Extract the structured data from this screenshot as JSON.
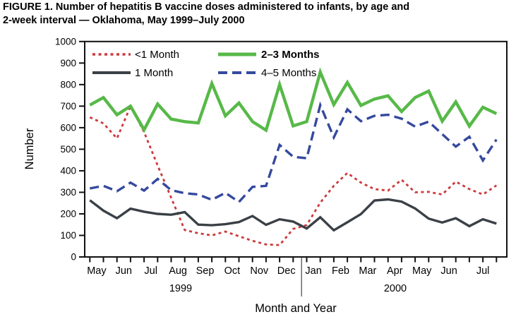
{
  "title": {
    "line1": "FIGURE 1. Number of hepatitis B vaccine doses administered to infants, by age and",
    "line2": "2-week interval — Oklahoma, May 1999–July 2000"
  },
  "chart_data": {
    "type": "line",
    "title": "FIGURE 1. Number of hepatitis B vaccine doses administered to infants, by age and 2-week interval — Oklahoma, May 1999–July 2000",
    "xlabel": "Month and Year",
    "ylabel": "Number",
    "ylim": [
      0,
      1000
    ],
    "ytick_step": 100,
    "ytick_labels": [
      "0",
      "100",
      "200",
      "300",
      "400",
      "500",
      "600",
      "700",
      "800",
      "900",
      "1000"
    ],
    "x_unit": "2-week interval (31 intervals)",
    "n_points": 31,
    "months": [
      "May",
      "Jun",
      "Jul",
      "Aug",
      "Sep",
      "Oct",
      "Nov",
      "Dec",
      "Jan",
      "Feb",
      "Mar",
      "Apr",
      "May",
      "Jun",
      "Jul"
    ],
    "years": [
      {
        "label": "1999",
        "span_months": "May–Dec"
      },
      {
        "label": "2000",
        "span_months": "Jan–Jul"
      }
    ],
    "grid": false,
    "legend_position": "top-inside",
    "series": [
      {
        "name": "<1 Month",
        "color": "#cd3a3c",
        "style": "dotted",
        "values": [
          648,
          620,
          550,
          700,
          580,
          425,
          275,
          125,
          110,
          100,
          118,
          96,
          75,
          58,
          55,
          130,
          148,
          252,
          330,
          390,
          345,
          315,
          308,
          358,
          300,
          302,
          290,
          350,
          315,
          290,
          332
        ]
      },
      {
        "name": "1 Month",
        "color": "#3a4046",
        "style": "solid",
        "values": [
          263,
          215,
          180,
          224,
          210,
          200,
          196,
          208,
          150,
          147,
          152,
          162,
          190,
          149,
          175,
          164,
          132,
          184,
          124,
          161,
          199,
          262,
          267,
          257,
          225,
          178,
          160,
          180,
          143,
          175,
          155
        ]
      },
      {
        "name": "2–3 Months",
        "color": "#57b948",
        "style": "solid-thick",
        "values": [
          705,
          740,
          660,
          700,
          590,
          710,
          640,
          628,
          622,
          805,
          655,
          715,
          628,
          588,
          800,
          608,
          628,
          858,
          707,
          810,
          703,
          733,
          748,
          675,
          740,
          770,
          630,
          720,
          607,
          695,
          665
        ]
      },
      {
        "name": "4–5 Months",
        "color": "#35499e",
        "style": "dashed",
        "values": [
          318,
          330,
          305,
          345,
          308,
          362,
          310,
          296,
          290,
          265,
          298,
          255,
          325,
          330,
          520,
          465,
          458,
          705,
          555,
          685,
          630,
          655,
          660,
          642,
          605,
          628,
          570,
          512,
          558,
          448,
          545
        ]
      }
    ]
  }
}
